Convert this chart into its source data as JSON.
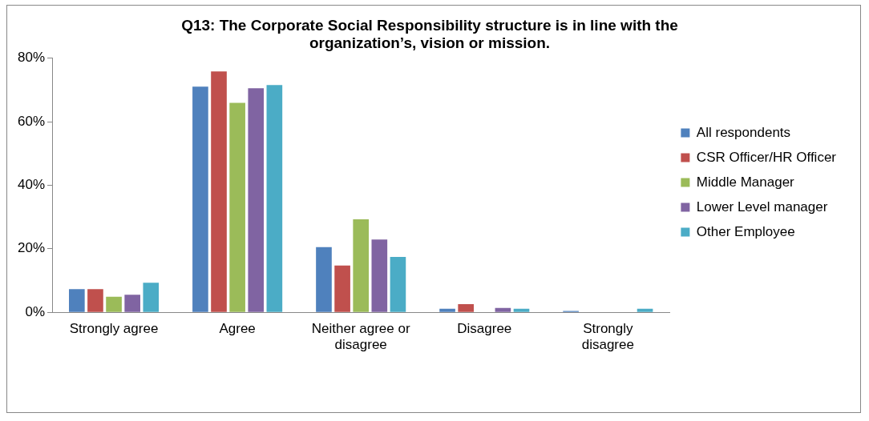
{
  "chart_data": {
    "type": "bar",
    "title": "Q13: The Corporate Social Responsibility structure is in line with the organization’s, vision or mission.",
    "categories": [
      "Strongly agree",
      "Agree",
      "Neither agree or disagree",
      "Disagree",
      "Strongly disagree"
    ],
    "series": [
      {
        "name": "All respondents",
        "color": "#4f81bd",
        "values": [
          7.3,
          71.0,
          20.5,
          1.1,
          0.4
        ]
      },
      {
        "name": "CSR Officer/HR Officer",
        "color": "#c0504d",
        "values": [
          7.3,
          75.8,
          14.7,
          2.6,
          0
        ]
      },
      {
        "name": "Middle Manager",
        "color": "#9bbb59",
        "values": [
          4.9,
          65.9,
          29.3,
          0,
          0
        ]
      },
      {
        "name": "Lower Level manager",
        "color": "#8064a2",
        "values": [
          5.5,
          70.5,
          22.9,
          1.4,
          0
        ]
      },
      {
        "name": "Other Employee",
        "color": "#4bacc6",
        "values": [
          9.3,
          71.5,
          17.4,
          1.1,
          1.1
        ]
      }
    ],
    "ylim": [
      0,
      80
    ],
    "yticks": [
      {
        "value": 0,
        "label": "0%"
      },
      {
        "value": 20,
        "label": "20%"
      },
      {
        "value": 40,
        "label": "40%"
      },
      {
        "value": 60,
        "label": "60%"
      },
      {
        "value": 80,
        "label": "80%"
      }
    ],
    "grid": false,
    "legend": "right"
  }
}
